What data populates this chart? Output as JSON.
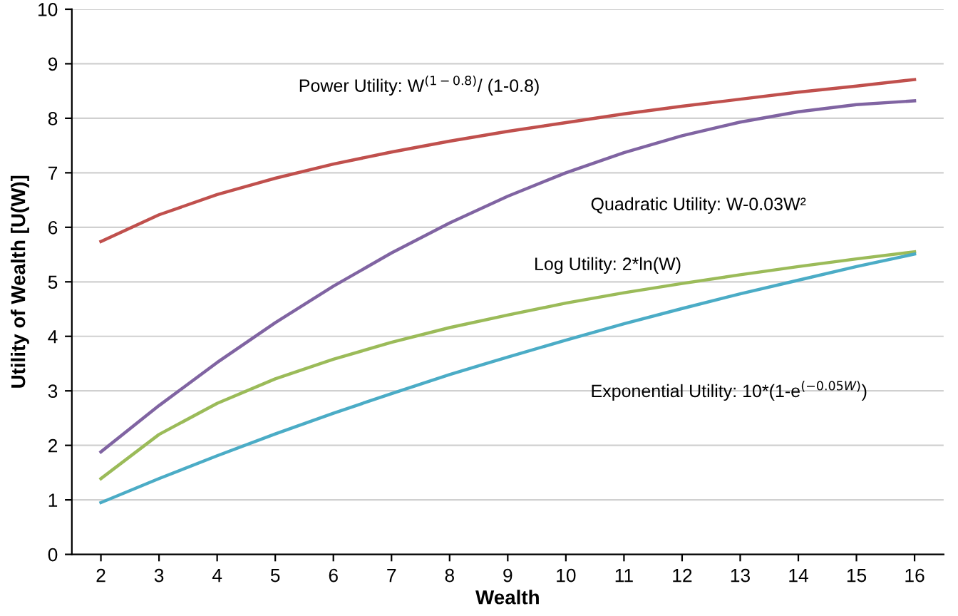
{
  "chart_data": {
    "type": "line",
    "xlabel": "Wealth",
    "ylabel": "Utility of Wealth [U(W)]",
    "x": [
      2,
      3,
      4,
      5,
      6,
      7,
      8,
      9,
      10,
      11,
      12,
      13,
      14,
      15,
      16
    ],
    "series": [
      {
        "name": "Power Utility: W$^{(1−0.8)}$/ (1-0.8)",
        "color": "#c0504d",
        "values": [
          5.74,
          6.23,
          6.6,
          6.9,
          7.16,
          7.38,
          7.58,
          7.76,
          7.92,
          8.08,
          8.22,
          8.35,
          8.48,
          8.59,
          8.71
        ]
      },
      {
        "name": "Quadratic Utility: W-0.03W²",
        "color": "#8064a2",
        "values": [
          1.88,
          2.73,
          3.52,
          4.25,
          4.92,
          5.53,
          6.08,
          6.57,
          7.0,
          7.37,
          7.68,
          7.93,
          8.12,
          8.25,
          8.32
        ]
      },
      {
        "name": "Log Utility: 2*ln(W)",
        "color": "#9bbb59",
        "values": [
          1.39,
          2.2,
          2.77,
          3.22,
          3.58,
          3.89,
          4.16,
          4.39,
          4.61,
          4.8,
          4.97,
          5.13,
          5.28,
          5.42,
          5.55
        ]
      },
      {
        "name": "Exponential Utility: 10*(1-e$^{(−0.05W)}$)",
        "color": "#4bacc6",
        "values": [
          0.95,
          1.39,
          1.81,
          2.21,
          2.59,
          2.95,
          3.3,
          3.62,
          3.93,
          4.23,
          4.51,
          4.78,
          5.03,
          5.28,
          5.51
        ]
      }
    ],
    "xlim": [
      1.5,
      16.5
    ],
    "xticks": [
      2,
      3,
      4,
      5,
      6,
      7,
      8,
      9,
      10,
      11,
      12,
      13,
      14,
      15,
      16
    ],
    "ylim": [
      0,
      10
    ],
    "yticks": [
      0,
      1,
      2,
      3,
      4,
      5,
      6,
      7,
      8,
      9,
      10
    ],
    "grid": "y",
    "legend": false,
    "marker": "none",
    "line_style": "solid"
  }
}
